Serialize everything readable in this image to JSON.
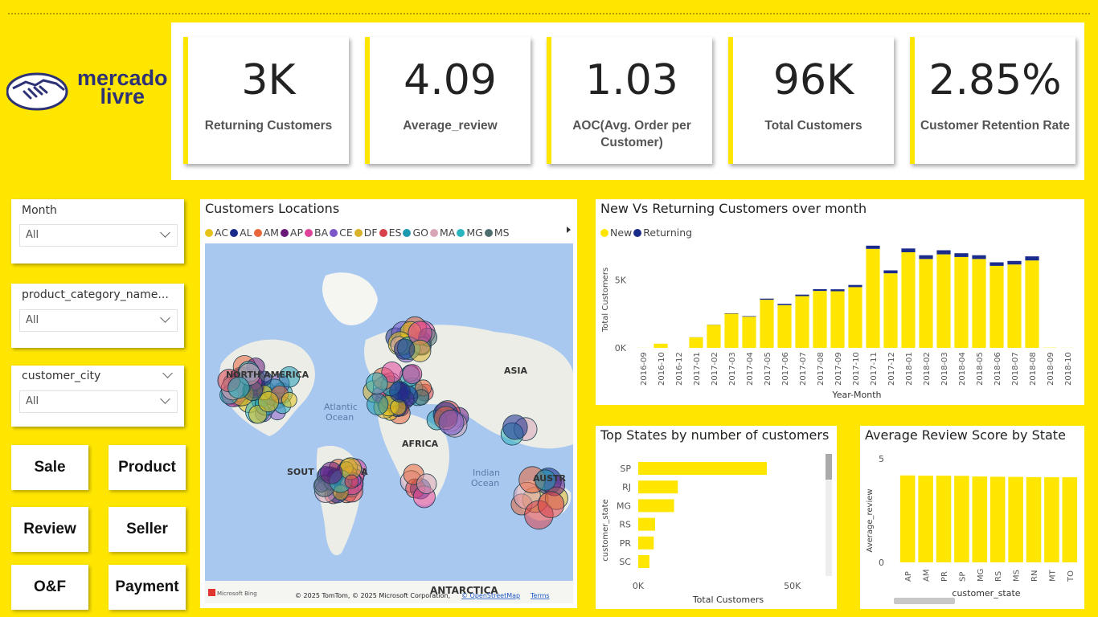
{
  "brand": {
    "line1": "mercado",
    "line2": "livre",
    "colors": {
      "yellow": "#FFE600",
      "navy": "#2D3277"
    }
  },
  "kpis": [
    {
      "value": "3K",
      "label": "Returning Customers"
    },
    {
      "value": "4.09",
      "label": "Average_review"
    },
    {
      "value": "1.03",
      "label": "AOC(Avg. Order per Customer)"
    },
    {
      "value": "96K",
      "label": "Total Customers"
    },
    {
      "value": "2.85%",
      "label": "Customer Retention Rate"
    }
  ],
  "slicers": {
    "month": {
      "title": "Month",
      "value": "All"
    },
    "product_category": {
      "title": "product_category_name...",
      "value": "All"
    },
    "customer_city": {
      "title": "customer_city",
      "value": "All"
    }
  },
  "nav": {
    "sale": "Sale",
    "product": "Product",
    "review": "Review",
    "seller": "Seller",
    "of": "O&F",
    "payment": "Payment"
  },
  "map": {
    "title": "Customers Locations",
    "legend": [
      {
        "label": "AC",
        "color": "#E6C21A"
      },
      {
        "label": "AL",
        "color": "#1A2B8C"
      },
      {
        "label": "AM",
        "color": "#E8663A"
      },
      {
        "label": "AP",
        "color": "#6B1A7A"
      },
      {
        "label": "BA",
        "color": "#E0449A"
      },
      {
        "label": "CE",
        "color": "#7B57C9"
      },
      {
        "label": "DF",
        "color": "#D9B22A"
      },
      {
        "label": "ES",
        "color": "#D8404A"
      },
      {
        "label": "GO",
        "color": "#1E9AB0"
      },
      {
        "label": "MA",
        "color": "#D9A6B8"
      },
      {
        "label": "MG",
        "color": "#2BB5C0"
      },
      {
        "label": "MS",
        "color": "#4F6F6F"
      }
    ],
    "labels": {
      "north_america": "NORTH AMERICA",
      "atlantic": "Atlantic",
      "ocean": "Ocean",
      "asia": "ASIA",
      "africa": "AFRICA",
      "south": "SOUT",
      "south_tail": "A",
      "indian": "Indian",
      "indian_ocean": "Ocean",
      "austr": "AUSTR",
      "antarctica": "ANTARCTICA"
    },
    "attribution": "© 2025 TomTom, © 2025 Microsoft Corporation,",
    "osm": "© OpenStreetMap",
    "terms": "Terms",
    "bing": "Microsoft Bing"
  },
  "chart_data": [
    {
      "type": "bar",
      "title": "New Vs Returning Customers over month",
      "xlabel": "Year-Month",
      "ylabel": "Total Customers",
      "categories": [
        "2016-09",
        "2016-10",
        "2016-12",
        "2017-01",
        "2017-02",
        "2017-03",
        "2017-04",
        "2017-05",
        "2017-06",
        "2017-07",
        "2017-08",
        "2017-09",
        "2017-10",
        "2017-11",
        "2017-12",
        "2018-01",
        "2018-02",
        "2018-03",
        "2018-04",
        "2018-05",
        "2018-06",
        "2018-07",
        "2018-08",
        "2018-09",
        "2018-10"
      ],
      "series": [
        {
          "name": "New",
          "color": "#FFE600",
          "values": [
            4,
            310,
            1,
            780,
            1700,
            2520,
            2300,
            3550,
            3150,
            3820,
            4200,
            4180,
            4480,
            7300,
            5500,
            7050,
            6550,
            6900,
            6700,
            6550,
            6050,
            6150,
            6450,
            16,
            4
          ]
        },
        {
          "name": "Returning",
          "color": "#1A2B8C",
          "values": [
            0,
            0,
            0,
            5,
            12,
            30,
            40,
            80,
            95,
            110,
            130,
            140,
            160,
            240,
            220,
            280,
            280,
            300,
            280,
            280,
            260,
            260,
            300,
            0,
            0
          ]
        }
      ],
      "yticks": [
        "0K",
        "5K"
      ],
      "ylim": [
        0,
        8000
      ],
      "stacked": true
    },
    {
      "type": "bar",
      "orientation": "horizontal",
      "title": "Top States by number of customers",
      "xlabel": "Total Customers",
      "ylabel": "customer_state",
      "categories": [
        "SP",
        "RJ",
        "MG",
        "RS",
        "PR",
        "SC"
      ],
      "values": [
        41746,
        12852,
        11635,
        5466,
        5045,
        3637
      ],
      "xticks": [
        "0K",
        "50K"
      ],
      "xlim": [
        0,
        60000
      ]
    },
    {
      "type": "bar",
      "title": "Average Review Score by State",
      "xlabel": "customer_state",
      "ylabel": "Average_review",
      "categories": [
        "AP",
        "AM",
        "PR",
        "SP",
        "MG",
        "RS",
        "MS",
        "RN",
        "MT",
        "TO"
      ],
      "values": [
        4.19,
        4.18,
        4.18,
        4.17,
        4.14,
        4.13,
        4.12,
        4.11,
        4.1,
        4.1
      ],
      "yticks": [
        "0",
        "5"
      ],
      "ylim": [
        0,
        5.5
      ]
    }
  ]
}
